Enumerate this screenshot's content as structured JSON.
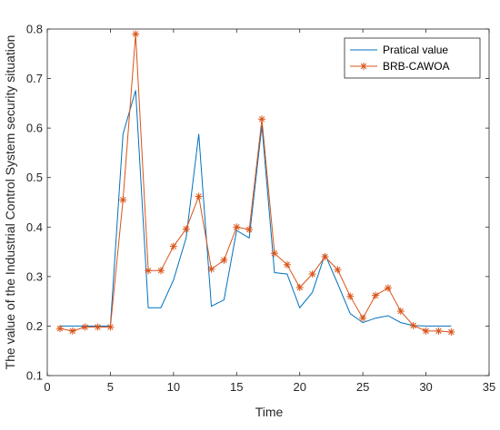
{
  "chart_data": {
    "type": "line",
    "xlabel": "Time",
    "ylabel": "The value of the Industrial Control System security situation",
    "xlim": [
      0,
      35
    ],
    "ylim": [
      0.1,
      0.8
    ],
    "xticks": [
      0,
      5,
      10,
      15,
      20,
      25,
      30,
      35
    ],
    "yticks": [
      0.1,
      0.2,
      0.3,
      0.4,
      0.5,
      0.6,
      0.7,
      0.8
    ],
    "xtick_labels": [
      "0",
      "5",
      "10",
      "15",
      "20",
      "25",
      "30",
      "35"
    ],
    "ytick_labels": [
      "0.1",
      "0.2",
      "0.3",
      "0.4",
      "0.5",
      "0.6",
      "0.7",
      "0.8"
    ],
    "grid": false,
    "legend_position": "top-right",
    "x": [
      1,
      2,
      3,
      4,
      5,
      6,
      7,
      8,
      9,
      10,
      11,
      12,
      13,
      14,
      15,
      16,
      17,
      18,
      19,
      20,
      21,
      22,
      23,
      24,
      25,
      26,
      27,
      28,
      29,
      30,
      31,
      32
    ],
    "series": [
      {
        "name": "Pratical value",
        "color": "#0072BD",
        "marker": "none",
        "values": [
          0.2,
          0.2,
          0.2,
          0.2,
          0.2,
          0.588,
          0.676,
          0.237,
          0.237,
          0.293,
          0.378,
          0.588,
          0.24,
          0.253,
          0.393,
          0.378,
          0.605,
          0.308,
          0.305,
          0.237,
          0.268,
          0.345,
          0.286,
          0.225,
          0.207,
          0.216,
          0.221,
          0.207,
          0.201,
          0.2,
          0.2,
          0.2
        ]
      },
      {
        "name": "BRB-CAWOA",
        "color": "#D95319",
        "marker": "asterisk",
        "values": [
          0.195,
          0.19,
          0.198,
          0.198,
          0.198,
          0.455,
          0.79,
          0.312,
          0.312,
          0.361,
          0.396,
          0.462,
          0.315,
          0.333,
          0.4,
          0.395,
          0.618,
          0.347,
          0.324,
          0.278,
          0.305,
          0.34,
          0.314,
          0.26,
          0.216,
          0.262,
          0.277,
          0.23,
          0.201,
          0.19,
          0.19,
          0.188
        ]
      }
    ]
  }
}
